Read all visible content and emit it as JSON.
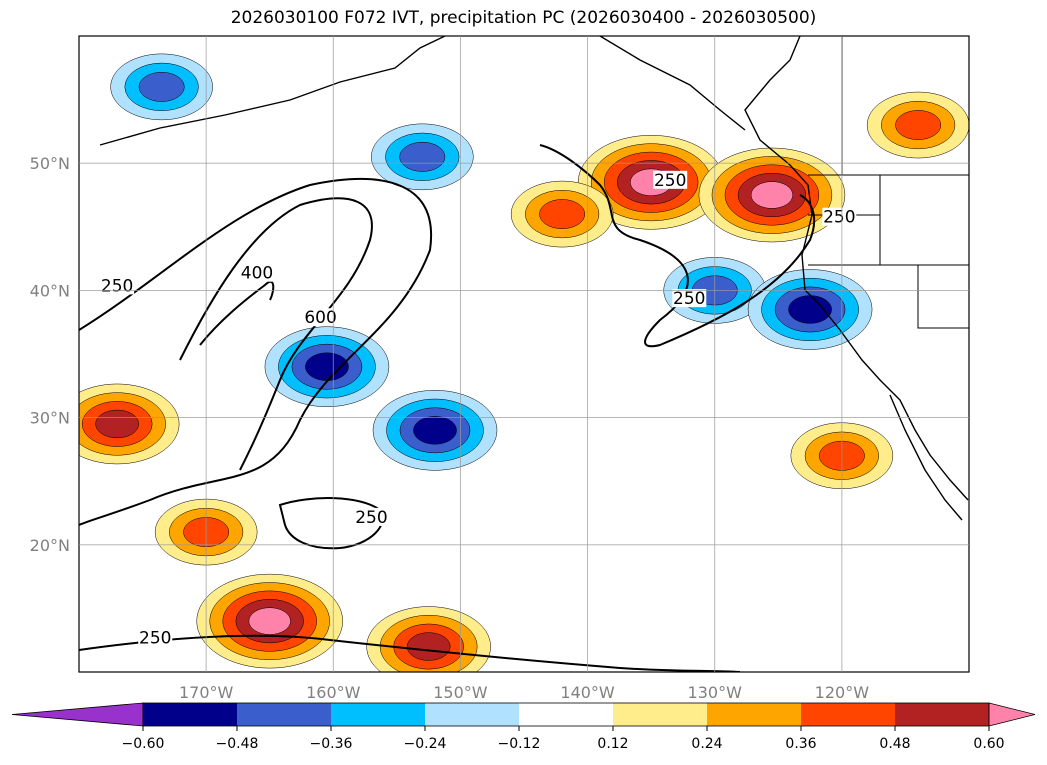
{
  "chart_data": {
    "type": "heatmap",
    "title": "2026030100 F072 IVT, precipitation PC (2026030400 - 2026030500)",
    "map": {
      "lon_range": [
        -180,
        -110
      ],
      "lat_range": [
        10,
        60
      ],
      "grid": true,
      "lon_ticks": [
        -170,
        -160,
        -150,
        -140,
        -130,
        -120
      ],
      "lon_tick_labels": [
        "170°W",
        "160°W",
        "150°W",
        "140°W",
        "130°W",
        "120°W"
      ],
      "lat_ticks": [
        20,
        30,
        40,
        50
      ],
      "lat_tick_labels": [
        "20°N",
        "30°N",
        "40°N",
        "50°N"
      ]
    },
    "colorbar": {
      "orientation": "horizontal",
      "extend": "both",
      "boundaries": [
        -0.6,
        -0.48,
        -0.36,
        -0.24,
        -0.12,
        0.12,
        0.24,
        0.36,
        0.48,
        0.6
      ],
      "tick_labels": [
        "−0.60",
        "−0.48",
        "−0.36",
        "−0.24",
        "−0.12",
        "0.12",
        "0.24",
        "0.36",
        "0.48",
        "0.60"
      ],
      "colors": [
        "#9932CC",
        "#00008B",
        "#3A5FCD",
        "#00BFFF",
        "#B0E2FF",
        "#FFFFFF",
        "#FFEC8B",
        "#FFA500",
        "#FF4500",
        "#B22222",
        "#FF82AB"
      ]
    },
    "ivt_contours": {
      "levels": [
        250,
        400,
        600
      ],
      "labels": [
        {
          "text": "250",
          "lon": -177,
          "lat": 40
        },
        {
          "text": "400",
          "lon": -166,
          "lat": 41
        },
        {
          "text": "600",
          "lon": -161,
          "lat": 37.5
        },
        {
          "text": "250",
          "lon": -174,
          "lat": 12.3
        },
        {
          "text": "250",
          "lon": -157,
          "lat": 21.8
        },
        {
          "text": "250",
          "lon": -133.5,
          "lat": 48.3
        },
        {
          "text": "250",
          "lon": -132,
          "lat": 39
        },
        {
          "text": "250",
          "lon": -120.2,
          "lat": 45.4
        }
      ]
    },
    "precip_pc_regions": [
      {
        "lon": -173.5,
        "lat": 56.0,
        "value": -0.42
      },
      {
        "lon": -153.0,
        "lat": 50.5,
        "value": -0.36
      },
      {
        "lon": -160.5,
        "lat": 34.0,
        "value": -0.5
      },
      {
        "lon": -152.0,
        "lat": 29.0,
        "value": -0.52
      },
      {
        "lon": -130.0,
        "lat": 40.0,
        "value": -0.4
      },
      {
        "lon": -122.5,
        "lat": 38.5,
        "value": -0.54
      },
      {
        "lon": -135.0,
        "lat": 48.5,
        "value": 0.62
      },
      {
        "lon": -125.5,
        "lat": 47.5,
        "value": 0.64
      },
      {
        "lon": -177.0,
        "lat": 29.5,
        "value": 0.5
      },
      {
        "lon": -165.0,
        "lat": 14.0,
        "value": 0.62
      },
      {
        "lon": -152.5,
        "lat": 12.0,
        "value": 0.5
      },
      {
        "lon": -142.0,
        "lat": 46.0,
        "value": 0.4
      },
      {
        "lon": -170.0,
        "lat": 21.0,
        "value": 0.4
      },
      {
        "lon": -114.0,
        "lat": 53.0,
        "value": 0.42
      },
      {
        "lon": -120.0,
        "lat": 27.0,
        "value": 0.4
      }
    ]
  }
}
